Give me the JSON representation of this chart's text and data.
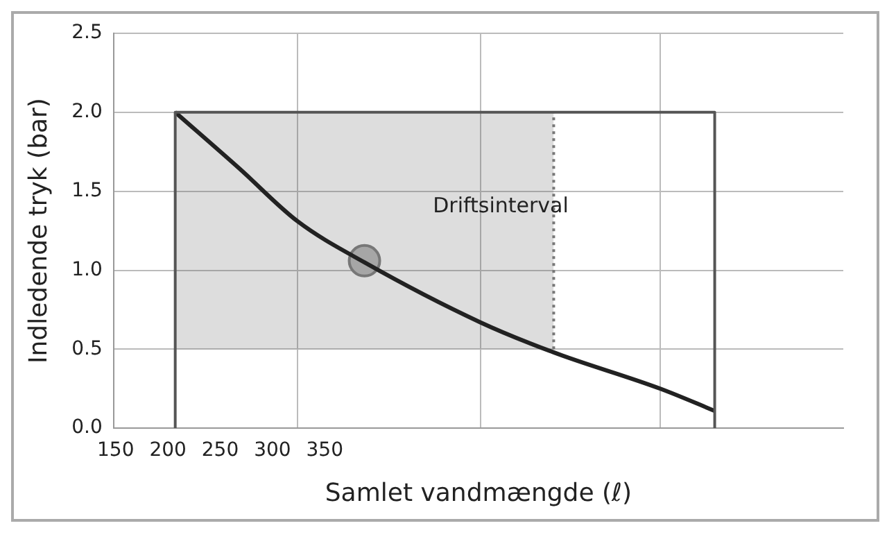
{
  "chart_data": {
    "type": "line",
    "xlabel": "Samlet vandmængde (ℓ)",
    "ylabel": "Indledende tryk (bar)",
    "xlim": [
      148,
      846
    ],
    "ylim": [
      0,
      2.5
    ],
    "xticks": [
      150,
      200,
      250,
      300,
      350,
      {
        "value": 324,
        "label": null
      },
      {
        "value": 499,
        "label": null
      },
      {
        "value": 671,
        "label": null
      }
    ],
    "yticks": [
      {
        "value": 0,
        "label": "0.0"
      },
      0.5,
      {
        "value": 1,
        "label": "1.0"
      },
      1.5,
      {
        "value": 2,
        "label": "2.0"
      },
      2.5
    ],
    "grid": true,
    "legend": false,
    "series": [
      {
        "type": "line",
        "color": "#555555",
        "x": [
          207,
          207,
          569,
          723,
          723
        ],
        "values": [
          0,
          2,
          2,
          2,
          0
        ],
        "lower": [
          null,
          0.5,
          0.5,
          null,
          null
        ],
        "upper": [
          null,
          2,
          2,
          null,
          null
        ],
        "line_style": "solid"
      },
      {
        "type": "line",
        "color": "#777777",
        "x": [
          569,
          569
        ],
        "values": [
          0.5,
          2
        ],
        "line_style": "dotted"
      },
      {
        "color": "#222222",
        "x": [
          207,
          269,
          324,
          388,
          499,
          569,
          671,
          723
        ],
        "values": [
          2,
          1.64,
          1.31,
          1.05,
          0.67,
          0.48,
          0.25,
          0.11
        ],
        "line_style": "solid"
      },
      {
        "type": "scatter",
        "color": "#a6a6a6",
        "x": [
          388
        ],
        "values": [
          1.06
        ],
        "marker": "circle"
      }
    ],
    "annotations": [
      "Driftsinterval"
    ]
  }
}
